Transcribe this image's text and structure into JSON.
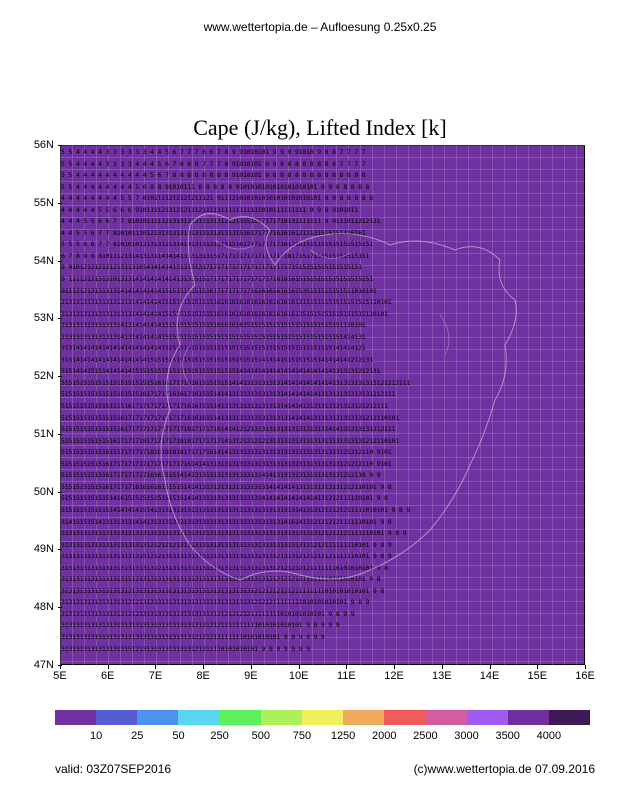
{
  "header": "www.wettertopia.de  –  Aufloesung 0.25x0.25",
  "title": "Cape (J/kg), Lifted Index [k]",
  "chart": {
    "type": "heatmap",
    "background_color": "#7030a0",
    "xlim": [
      5,
      16
    ],
    "ylim": [
      47,
      56
    ],
    "x_ticks": [
      "5E",
      "6E",
      "7E",
      "8E",
      "9E",
      "10E",
      "11E",
      "12E",
      "13E",
      "14E",
      "15E",
      "16E"
    ],
    "y_ticks": [
      "56N",
      "55N",
      "54N",
      "53N",
      "52N",
      "51N",
      "50N",
      "49N",
      "48N",
      "47N"
    ],
    "axis_fontsize": 11,
    "data_rows": [
      "5 5 4 4 4 4 3 3 3 3 3 3 4 4 5 6 7 7 7 6 6 7 8 9 91010101 9 9 9 91010 9 8 8 7 7 7 7",
      "5 5 4 4 4 4 3 3 3 3 4 4 4 5 6 7 8 8 8 7 7 7 8 91010101 9 9 8 8 8 8 8 8 8 8 7 7 7 7",
      "5 5 4 4 4 4 4 4 4 4 4 4 5 6 7 8 8 8 8 8 8 8 8 91010101 9 8 8 8 8 8 8 8 8 8 8 8 8 8",
      "5 5 4 4 4 4 4 4 4 4 5 6 8 8 91010111 8 8 8 8 8 9101010101010101010101 9 9 8 8 8 8 8",
      "4 4 4 4 4 4 4 4 5 5 7 8101111212121211121 9111210101010101010101010101 9 9 8 8 8 8 8",
      "4 4 4 4 4 5 5 6 6 6 9101111212121211121111111111111111010111111111 9 9 8 9101011",
      "4 4 4 5 5 6 6 7 7 8101011111213131213131313121213151617171718131111111 9 9111011212131",
      "4 4 5 5 6 7 7 81010111012131313131313131313131315161717171616161212131515151416161",
      "5 5 5 6 6 7 7 8101010121313121314141313131315151617171717171617161515151515151515151",
      "6 7 8 9 8 8101112131413131141414131313131517171717171717171718171517151515151515151",
      "8 9101212121212131131014141414131313131717171717171717171717171515151515151515151",
      "9 1111212131310131314141414141413131515171717171717171717181816151515151515151515151",
      "0111212131313131414141414141515151515151617171717171616161616161535151515151511010101",
      "21313131313131313131414141415151515151515161616161616161616161613151515151515151515110101",
      "3131313131313131313141414141515151515151516161616161616161616161351515151515151515110101",
      "2131313131313131413141414141515151515151516161616151515151515151515151515151110101",
      "2131313131313131413141414141515151515151515151515151515151515151515151515151414131",
      "3131414141414141414141414141515151515151515151515151515151515151515151515141414121",
      "313141414141414141414141515151515151515151515151515151414141515151515141414141212131",
      "31514141515141414141515151515151515151515151515141414141414141414141414141313131212131",
      "3151515151515151515151515161617171616151515151414131313131314141414141414131313131313121212111",
      "515151515151515151515161717171616171615151414131313131313131414141414131313131313131212111",
      "5151515151515151516171717171717171616151514131313131313131314141413131313131313121212111",
      "5151515151515151617171717171717171616161514131313131313131313141414131313131313131212110101",
      "515151515151515161717171717171717181717171614141212131313131313131313131414131313131212111",
      "5151515151515161717171817171717181817171717141312121212131313131313131313131313131212110101",
      "515151515151615171717171818181818171717161414131313131313131313131313131313121212110 9101",
      "515151515151617171717171717171717161414131313131313131313131313131313131313121212110 9101",
      "5151515151516171717171716161515141413131313131313131314141313131313131313131212110 9 9",
      "5151515151516171717161616161515151414131313131313131313141414141313131313131212110101 9 8",
      "515151515151514161515151515151515141413131313131313131414141414141414131212111110101 9 8",
      "5151515151515141414141514131313131313131313131313131313131313131413131212121211111010101 9 8 9",
      "3141515151413131313141413131313131313131313131313131313131314161413121212121111110101 9 8",
      "313131313131313131313131313131313131312131313131313131313131313131313121212121111110101 9 8 9",
      "31313131313131313131313121212121313131313131313131313131313131313121212121111110101 9 8 9",
      "31313131313131313131315121213131313131313131313131313131312131312121212121111110101 9 8 9",
      "313131313131313131313131312131313131313131313131313131313121212121211111110101010101 9 8",
      "3131313131313131315121313131313131313131313131313131313121212121211111110101010101 9 8",
      "31313131313131313121313131313131313131313131313131312121212121211111111010101010101 9 8",
      "31313131313131313121213131313131313131313131313131312121211111111010101010101 9 8 9",
      "31313131313131313121213131313131313131313121212121211111111010101010101 9 8 9 9",
      "31313131313131313131313131313131313131212121211111111010101010101 9 8 9 9 9",
      "31313131313131313131313131313131313121212111111110101010101 9 8 9 9 9 9",
      "31313131313131313151213131313131313121211110101010101 9 8 9 9 9 9 9"
    ]
  },
  "colorbar": {
    "colors": [
      "#7030a0",
      "#545dd4",
      "#4d92ec",
      "#5cd5f0",
      "#5cf05c",
      "#aef05c",
      "#f0f05c",
      "#f0aa5c",
      "#f05c5c",
      "#d45ca0",
      "#a05cf0",
      "#702da0",
      "#3d1a55"
    ],
    "labels": [
      "10",
      "25",
      "50",
      "250",
      "500",
      "750",
      "1250",
      "2000",
      "2500",
      "3000",
      "3500",
      "4000"
    ],
    "label_fontsize": 11
  },
  "footer": {
    "valid": "valid:  03Z07SEP2016",
    "copyright": "(c)www.wettertopia.de  07.09.2016"
  }
}
